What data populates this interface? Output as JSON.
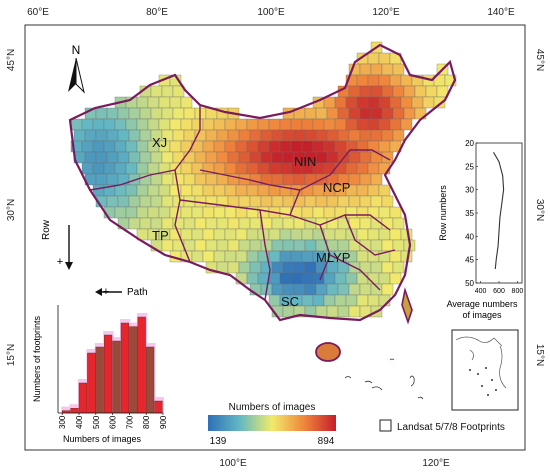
{
  "map": {
    "north_label": "N",
    "lon_ticks": [
      "60°E",
      "80°E",
      "100°E",
      "120°E",
      "140°E"
    ],
    "lat_ticks": [
      "45°N",
      "30°N",
      "15°N"
    ],
    "regions": [
      "XJ",
      "NIN",
      "NCP",
      "TP",
      "MLYP",
      "SC"
    ],
    "row_label": "Row",
    "row_sign": "+",
    "path_label": "Path",
    "path_sign": "+",
    "legend": {
      "title": "Numbers of images",
      "min": "139",
      "max": "894",
      "footprints": "Landsat 5/7/8 Footprints"
    },
    "colors": {
      "low": "#3b77b8",
      "mid": "#f4e66a",
      "high": "#c8232b",
      "boundary": "#7a1b5e"
    }
  },
  "chart_data": [
    {
      "type": "bar",
      "ylabel": "Numbers of footprints",
      "xlabel": "Numbers of images",
      "x_ticks": [
        "300",
        "400",
        "500",
        "600",
        "700",
        "800",
        "900"
      ],
      "bins": [
        300,
        350,
        400,
        450,
        500,
        550,
        600,
        650,
        700,
        750,
        800,
        850
      ],
      "values": [
        2,
        4,
        25,
        50,
        55,
        65,
        60,
        75,
        72,
        80,
        55,
        10
      ]
    },
    {
      "type": "line",
      "xlabel": "Average numbers of images",
      "ylabel": "Row numbers",
      "x_ticks": [
        "400",
        "600",
        "800"
      ],
      "y_ticks": [
        "20",
        "25",
        "30",
        "35",
        "40",
        "45",
        "50"
      ],
      "xlim": [
        350,
        850
      ],
      "ylim": [
        20,
        50
      ],
      "points": [
        [
          540,
          22
        ],
        [
          600,
          24
        ],
        [
          640,
          27
        ],
        [
          650,
          30
        ],
        [
          630,
          33
        ],
        [
          610,
          36
        ],
        [
          600,
          39
        ],
        [
          590,
          42
        ],
        [
          570,
          45
        ],
        [
          560,
          47
        ]
      ]
    }
  ]
}
